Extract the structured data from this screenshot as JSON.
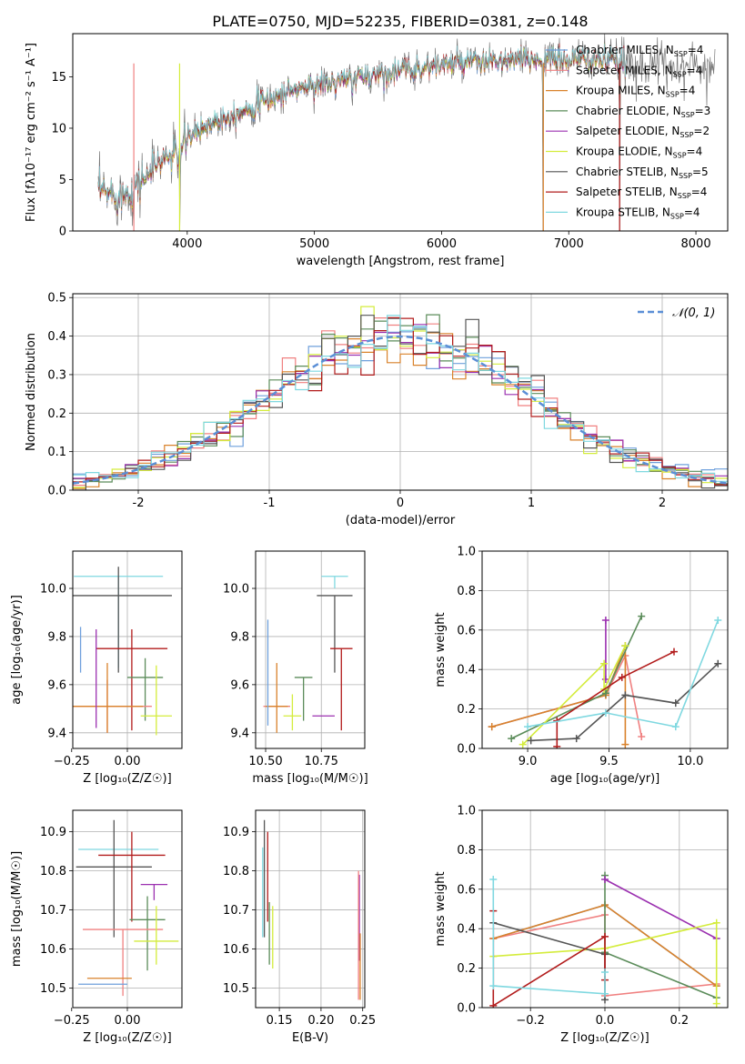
{
  "figure_title": "PLATE=0750, MJD=52235, FIBERID=0381, z=0.148",
  "colors": {
    "Chabrier MILES": "#6fa0dc",
    "Salpeter MILES": "#f08080",
    "Kroupa MILES": "#d9822b",
    "Chabrier ELODIE": "#5b8c5a",
    "Salpeter ELODIE": "#9b30b0",
    "Kroupa ELODIE": "#d4ec3c",
    "Chabrier STELIB": "#555555",
    "Salpeter STELIB": "#b21c1c",
    "Kroupa STELIB": "#7fd8e0",
    "normal": "#5b8fd6",
    "spectrum_gray": "#777777",
    "grid": "#b0b0b0"
  },
  "chart_data": [
    {
      "id": "spectrum",
      "type": "line",
      "title": "PLATE=0750, MJD=52235, FIBERID=0381, z=0.148",
      "xlabel": "wavelength [Angstrom, rest frame]",
      "ylabel": "Flux [fλ10⁻¹⁷ erg cm⁻² s⁻¹ A⁻¹]",
      "xlim": [
        3100,
        8250
      ],
      "ylim": [
        0,
        19.2
      ],
      "xticks": [
        4000,
        5000,
        6000,
        7000,
        8000
      ],
      "yticks": [
        0,
        5,
        10,
        15
      ],
      "grid": false,
      "legend_position": "top-right",
      "legend": [
        {
          "label": "Chabrier MILES, N",
          "sub": "SSP",
          "suffix": "=4"
        },
        {
          "label": "Salpeter MILES, N",
          "sub": "SSP",
          "suffix": "=4"
        },
        {
          "label": "Kroupa MILES, N",
          "sub": "SSP",
          "suffix": "=4"
        },
        {
          "label": "Chabrier ELODIE, N",
          "sub": "SSP",
          "suffix": "=3"
        },
        {
          "label": "Salpeter ELODIE, N",
          "sub": "SSP",
          "suffix": "=2"
        },
        {
          "label": "Kroupa ELODIE, N",
          "sub": "SSP",
          "suffix": "=4"
        },
        {
          "label": "Chabrier STELIB, N",
          "sub": "SSP",
          "suffix": "=5"
        },
        {
          "label": "Salpeter STELIB, N",
          "sub": "SSP",
          "suffix": "=4"
        },
        {
          "label": "Kroupa STELIB, N",
          "sub": "SSP",
          "suffix": "=4"
        }
      ],
      "continuum": {
        "x": [
          3300,
          3500,
          3650,
          3800,
          3950,
          4000,
          4200,
          4500,
          4800,
          5000,
          5200,
          5500,
          5800,
          6000,
          6200,
          6500,
          6800,
          7000,
          7200,
          7400,
          7600,
          7800,
          8000,
          8100
        ],
        "y": [
          3.8,
          3.5,
          5.0,
          7.0,
          7.5,
          9.0,
          10.6,
          12.0,
          13.6,
          14.2,
          14.5,
          15.3,
          15.8,
          16.2,
          16.3,
          16.5,
          16.7,
          16.6,
          16.7,
          16.4,
          16.2,
          16.1,
          16.0,
          16.0
        ]
      },
      "noise_amplitude": 1.0,
      "data_range": [
        3300,
        8150
      ],
      "model_range": [
        3300,
        7450
      ],
      "dropouts": [
        {
          "x": 3580,
          "bottom": 0
        },
        {
          "x": 3940,
          "bottom": 0
        },
        {
          "x": 6800,
          "bottom": 0
        },
        {
          "x": 7400,
          "bottom": 0
        }
      ]
    },
    {
      "id": "residuals",
      "type": "line",
      "xlabel": "(data-model)/error",
      "ylabel": "Normed distribution",
      "xlim": [
        -2.5,
        2.5
      ],
      "ylim": [
        0,
        0.51
      ],
      "xticks": [
        -2,
        -1,
        0,
        1,
        2
      ],
      "yticks": [
        0.0,
        0.1,
        0.2,
        0.3,
        0.4,
        0.5
      ],
      "ytick_labels": [
        "0.0",
        "0.1",
        "0.2",
        "0.3",
        "0.4",
        "0.5"
      ],
      "grid": true,
      "legend_position": "top-right",
      "legend_label": "𝒩(0, 1)",
      "bin_width": 0.1,
      "normal_pdf": {
        "mean": 0,
        "sigma": 1
      },
      "histogram_scatter": 0.04
    },
    {
      "id": "age_vs_Z",
      "type": "scatter",
      "xlabel": "Z [log₁₀(Z/Z☉)]",
      "ylabel": "age  [log₁₀(age/yr)]",
      "xlim": [
        -0.245,
        0.245
      ],
      "ylim": [
        9.335,
        10.155
      ],
      "xticks": [
        -0.25,
        0.0
      ],
      "xtick_labels": [
        "−0.25",
        "0.00"
      ],
      "yticks": [
        9.4,
        9.6,
        9.8,
        10.0
      ],
      "ytick_labels": [
        "9.4",
        "9.6",
        "9.8",
        "10.0"
      ],
      "grid": true,
      "series": [
        {
          "model": "Kroupa STELIB",
          "x": -0.04,
          "xerr": 0.2,
          "y": 10.05,
          "yerr": [
            0.38,
            0.0
          ]
        },
        {
          "model": "Chabrier STELIB",
          "x": -0.04,
          "xerr": 0.24,
          "y": 9.97,
          "yerr": [
            0.32,
            0.12
          ]
        },
        {
          "model": "Salpeter STELIB",
          "x": 0.02,
          "xerr": 0.16,
          "y": 9.75,
          "yerr": [
            0.34,
            0.08
          ]
        },
        {
          "model": "Chabrier ELODIE",
          "x": 0.08,
          "xerr": 0.08,
          "y": 9.63,
          "yerr": [
            0.18,
            0.08
          ]
        },
        {
          "model": "Salpeter MILES",
          "x": -0.09,
          "xerr": 0.2,
          "y": 9.51,
          "yerr": [
            0.11,
            0.11
          ]
        },
        {
          "model": "Kroupa MILES",
          "x": -0.09,
          "xerr": 0.16,
          "y": 9.51,
          "yerr": [
            0.11,
            0.18
          ]
        },
        {
          "model": "Kroupa ELODIE",
          "x": 0.13,
          "xerr": 0.07,
          "y": 9.47,
          "yerr": [
            0.08,
            0.21
          ]
        },
        {
          "model": "Salpeter ELODIE",
          "x": -0.14,
          "xerr": 0.0,
          "y": 9.6,
          "yerr": [
            0.18,
            0.23
          ]
        },
        {
          "model": "Chabrier MILES",
          "x": -0.21,
          "xerr": 0.0,
          "y": 9.75,
          "yerr": [
            0.1,
            0.09
          ]
        }
      ]
    },
    {
      "id": "age_vs_mass",
      "type": "scatter",
      "xlabel": "mass [log₁₀(M/M☉)]",
      "ylabel": "",
      "xlim": [
        10.455,
        10.945
      ],
      "ylim": [
        9.335,
        10.155
      ],
      "xticks": [
        10.5,
        10.75
      ],
      "xtick_labels": [
        "10.50",
        "10.75"
      ],
      "yticks": [
        9.4,
        9.6,
        9.8,
        10.0
      ],
      "ytick_labels": [
        "9.4",
        "9.6",
        "9.8",
        "10.0"
      ],
      "grid": true,
      "series": [
        {
          "model": "Kroupa STELIB",
          "x": 10.81,
          "xerr": 0.06,
          "y": 10.05,
          "yerr": [
            0.05,
            0.0
          ]
        },
        {
          "model": "Chabrier STELIB",
          "x": 10.81,
          "xerr": 0.08,
          "y": 9.97,
          "yerr": [
            0.32,
            0.0
          ]
        },
        {
          "model": "Salpeter STELIB",
          "x": 10.84,
          "xerr": 0.05,
          "y": 9.75,
          "yerr": [
            0.34,
            0.0
          ]
        },
        {
          "model": "Chabrier ELODIE",
          "x": 10.67,
          "xerr": 0.04,
          "y": 9.63,
          "yerr": [
            0.18,
            0.0
          ]
        },
        {
          "model": "Salpeter MILES",
          "x": 10.55,
          "xerr": 0.06,
          "y": 9.51,
          "yerr": [
            0.0,
            0.0
          ]
        },
        {
          "model": "Kroupa MILES",
          "x": 10.55,
          "xerr": 0.05,
          "y": 9.51,
          "yerr": [
            0.11,
            0.18
          ]
        },
        {
          "model": "Kroupa ELODIE",
          "x": 10.62,
          "xerr": 0.04,
          "y": 9.47,
          "yerr": [
            0.06,
            0.09
          ]
        },
        {
          "model": "Salpeter ELODIE",
          "x": 10.76,
          "xerr": 0.05,
          "y": 9.47,
          "yerr": [
            0.0,
            0.0
          ]
        },
        {
          "model": "Chabrier MILES",
          "x": 10.51,
          "xerr": 0.0,
          "y": 9.67,
          "yerr": [
            0.24,
            0.2
          ]
        }
      ]
    },
    {
      "id": "weight_vs_age",
      "type": "line",
      "xlabel": "age  [log₁₀(age/yr)]",
      "ylabel": "mass weight",
      "xlim": [
        8.72,
        10.23
      ],
      "ylim": [
        0,
        1.0
      ],
      "xticks": [
        9.0,
        9.5,
        10.0
      ],
      "xtick_labels": [
        "9.0",
        "9.5",
        "10.0"
      ],
      "yticks": [
        0.0,
        0.2,
        0.4,
        0.6,
        0.8,
        1.0
      ],
      "ytick_labels": [
        "0.0",
        "0.2",
        "0.4",
        "0.6",
        "0.8",
        "1.0"
      ],
      "grid": true,
      "series": [
        {
          "model": "Chabrier MILES",
          "x": [
            8.78,
            9.48,
            9.6
          ],
          "y": [
            0.11,
            0.27,
            0.52
          ]
        },
        {
          "model": "Salpeter MILES",
          "x": [
            8.78,
            9.48,
            9.6,
            9.7
          ],
          "y": [
            0.11,
            0.27,
            0.47,
            0.06
          ]
        },
        {
          "model": "Kroupa MILES",
          "x": [
            8.78,
            9.48,
            9.6,
            9.6
          ],
          "y": [
            0.11,
            0.27,
            0.52,
            0.02
          ]
        },
        {
          "model": "Chabrier ELODIE",
          "x": [
            8.9,
            9.48,
            9.7
          ],
          "y": [
            0.05,
            0.28,
            0.67
          ]
        },
        {
          "model": "Salpeter ELODIE",
          "x": [
            9.48,
            9.48
          ],
          "y": [
            0.35,
            0.65
          ]
        },
        {
          "model": "Kroupa ELODIE",
          "x": [
            8.97,
            9.47,
            9.47,
            9.6
          ],
          "y": [
            0.02,
            0.43,
            0.3,
            0.52
          ]
        },
        {
          "model": "Chabrier STELIB",
          "x": [
            9.02,
            9.3,
            9.6,
            9.91,
            10.17
          ],
          "y": [
            0.04,
            0.05,
            0.27,
            0.23,
            0.43
          ]
        },
        {
          "model": "Salpeter STELIB",
          "x": [
            9.18,
            9.18,
            9.58,
            9.9
          ],
          "y": [
            0.01,
            0.14,
            0.36,
            0.49
          ]
        },
        {
          "model": "Kroupa STELIB",
          "x": [
            9.0,
            9.48,
            9.91,
            10.17
          ],
          "y": [
            0.11,
            0.18,
            0.11,
            0.65
          ]
        }
      ]
    },
    {
      "id": "mass_vs_Z",
      "type": "scatter",
      "xlabel": "Z [log₁₀(Z/Z☉)]",
      "ylabel": "mass [log₁₀(M/M☉)]",
      "xlim": [
        -0.245,
        0.245
      ],
      "ylim": [
        10.45,
        10.955
      ],
      "xticks": [
        -0.25,
        0.0
      ],
      "xtick_labels": [
        "−0.25",
        "0.00"
      ],
      "yticks": [
        10.5,
        10.6,
        10.7,
        10.8,
        10.9
      ],
      "ytick_labels": [
        "10.5",
        "10.6",
        "10.7",
        "10.8",
        "10.9"
      ],
      "grid": true,
      "series": [
        {
          "model": "Kroupa STELIB",
          "x": -0.04,
          "xerr": 0.18,
          "y": 10.855,
          "yerr": [
            0.0,
            0.0
          ]
        },
        {
          "model": "Chabrier STELIB",
          "x": -0.06,
          "xerr": 0.17,
          "y": 10.81,
          "yerr": [
            0.18,
            0.12
          ]
        },
        {
          "model": "Salpeter STELIB",
          "x": 0.02,
          "xerr": 0.15,
          "y": 10.84,
          "yerr": [
            0.17,
            0.06
          ]
        },
        {
          "model": "Salpeter ELODIE",
          "x": 0.12,
          "xerr": 0.06,
          "y": 10.765,
          "yerr": [
            0.04,
            0.0
          ]
        },
        {
          "model": "Chabrier ELODIE",
          "x": 0.09,
          "xerr": 0.08,
          "y": 10.675,
          "yerr": [
            0.13,
            0.06
          ]
        },
        {
          "model": "Salpeter MILES",
          "x": -0.02,
          "xerr": 0.18,
          "y": 10.65,
          "yerr": [
            0.17,
            0.0
          ]
        },
        {
          "model": "Kroupa ELODIE",
          "x": 0.13,
          "xerr": 0.1,
          "y": 10.62,
          "yerr": [
            0.06,
            0.09
          ]
        },
        {
          "model": "Kroupa MILES",
          "x": -0.08,
          "xerr": 0.1,
          "y": 10.525,
          "yerr": [
            0.0,
            0.0
          ]
        },
        {
          "model": "Chabrier MILES",
          "x": -0.11,
          "xerr": 0.11,
          "y": 10.51,
          "yerr": [
            0.0,
            0.0
          ]
        }
      ]
    },
    {
      "id": "mass_vs_ebv",
      "type": "scatter",
      "xlabel": "E(B-V)",
      "ylabel": "",
      "xlim": [
        0.1215,
        0.2525
      ],
      "ylim": [
        10.45,
        10.955
      ],
      "xticks": [
        0.15,
        0.2,
        0.25
      ],
      "xtick_labels": [
        "0.15",
        "0.20",
        "0.25"
      ],
      "yticks": [
        10.5,
        10.6,
        10.7,
        10.8,
        10.9
      ],
      "ytick_labels": [
        "10.5",
        "10.6",
        "10.7",
        "10.8",
        "10.9"
      ],
      "grid": true,
      "series": [
        {
          "model": "Kroupa STELIB",
          "x": 0.13,
          "y": 10.75,
          "yerr": [
            0.12,
            0.11
          ]
        },
        {
          "model": "Chabrier STELIB",
          "x": 0.132,
          "y": 10.8,
          "yerr": [
            0.17,
            0.13
          ]
        },
        {
          "model": "Salpeter STELIB",
          "x": 0.136,
          "y": 10.78,
          "yerr": [
            0.11,
            0.12
          ]
        },
        {
          "model": "Chabrier ELODIE",
          "x": 0.138,
          "y": 10.66,
          "yerr": [
            0.1,
            0.06
          ]
        },
        {
          "model": "Kroupa ELODIE",
          "x": 0.142,
          "y": 10.64,
          "yerr": [
            0.09,
            0.07
          ]
        },
        {
          "model": "Salpeter ELODIE",
          "x": 0.246,
          "y": 10.68,
          "yerr": [
            0.11,
            0.11
          ]
        },
        {
          "model": "Salpeter MILES",
          "x": 0.245,
          "y": 10.6,
          "yerr": [
            0.13,
            0.2
          ]
        },
        {
          "model": "Kroupa MILES",
          "x": 0.247,
          "y": 10.54,
          "yerr": [
            0.07,
            0.1
          ]
        }
      ]
    },
    {
      "id": "weight_vs_Z",
      "type": "line",
      "xlabel": "Z [log₁₀(Z/Z☉)]",
      "ylabel": "mass weight",
      "xlim": [
        -0.33,
        0.33
      ],
      "ylim": [
        0,
        1.0
      ],
      "xticks": [
        -0.2,
        0.0,
        0.2
      ],
      "xtick_labels": [
        "−0.2",
        "0.0",
        "0.2"
      ],
      "yticks": [
        0.0,
        0.2,
        0.4,
        0.6,
        0.8,
        1.0
      ],
      "ytick_labels": [
        "0.0",
        "0.2",
        "0.4",
        "0.6",
        "0.8",
        "1.0"
      ],
      "grid": true,
      "series": [
        {
          "model": "Chabrier MILES",
          "x": [
            -0.3,
            0.0,
            0.3
          ],
          "y": [
            0.35,
            0.52,
            0.11
          ]
        },
        {
          "model": "Salpeter MILES",
          "x": [
            -0.3,
            0.0,
            0.0,
            0.3
          ],
          "y": [
            0.35,
            0.47,
            0.06,
            0.12
          ]
        },
        {
          "model": "Kroupa MILES",
          "x": [
            -0.3,
            0.0,
            0.3
          ],
          "y": [
            0.35,
            0.52,
            0.11
          ]
        },
        {
          "model": "Chabrier ELODIE",
          "x": [
            0.0,
            0.0,
            0.3
          ],
          "y": [
            0.67,
            0.28,
            0.05
          ]
        },
        {
          "model": "Salpeter ELODIE",
          "x": [
            0.0,
            0.3
          ],
          "y": [
            0.65,
            0.35
          ]
        },
        {
          "model": "Kroupa ELODIE",
          "x": [
            -0.3,
            0.0,
            0.3,
            0.3
          ],
          "y": [
            0.26,
            0.3,
            0.43,
            0.02
          ]
        },
        {
          "model": "Chabrier STELIB",
          "x": [
            -0.3,
            0.0,
            0.0
          ],
          "y": [
            0.43,
            0.27,
            0.04
          ]
        },
        {
          "model": "Salpeter STELIB",
          "x": [
            -0.3,
            -0.3,
            0.0,
            0.0
          ],
          "y": [
            0.49,
            0.01,
            0.36,
            0.14
          ]
        },
        {
          "model": "Kroupa STELIB",
          "x": [
            -0.3,
            -0.3,
            0.0,
            0.0
          ],
          "y": [
            0.65,
            0.11,
            0.07,
            0.18
          ]
        }
      ]
    }
  ]
}
